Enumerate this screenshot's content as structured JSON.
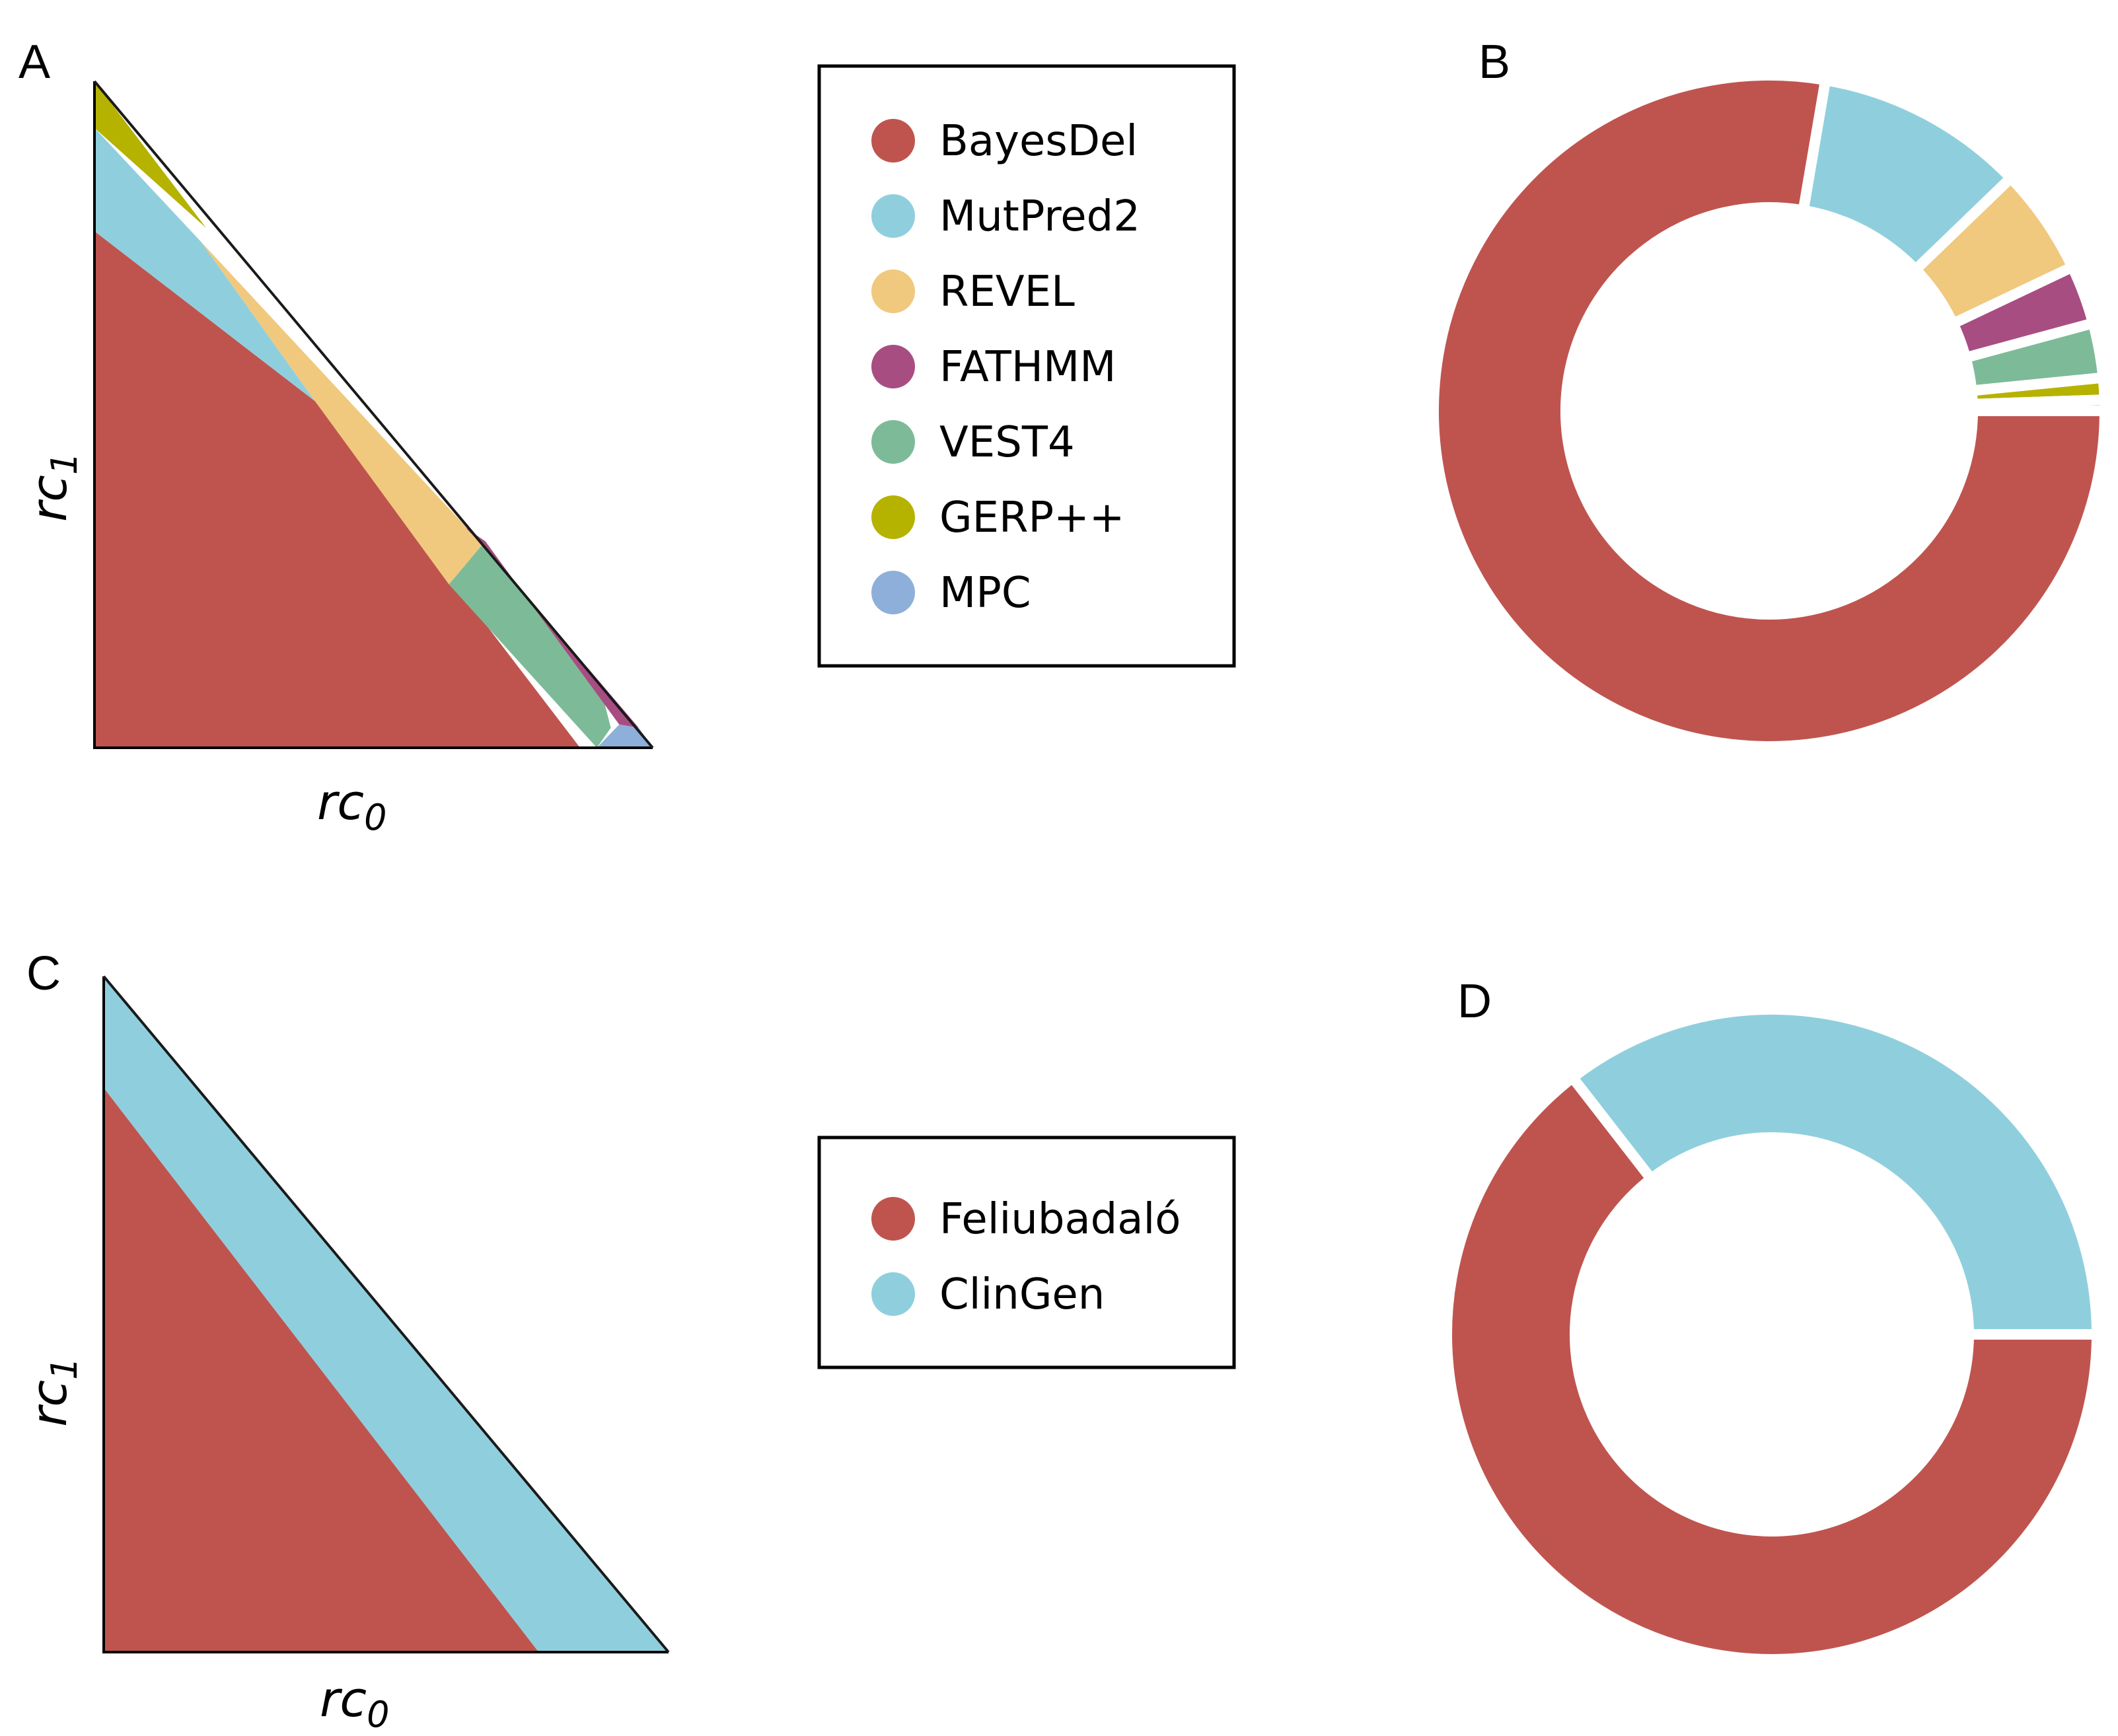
{
  "colors": {
    "BayesDel": "#bf544f",
    "MutPred2": "#8fcfdd",
    "REVEL": "#f0c97e",
    "FATHMM": "#a84d82",
    "VEST4": "#7dbb98",
    "GERP++": "#b5b200",
    "MPC": "#8eafd9",
    "Feliubadaló": "#bf544f",
    "ClinGen": "#8fcfdd"
  },
  "chart_data": [
    {
      "panel": "A",
      "type": "area",
      "xlabel": "rc",
      "xlabel_sub": "0",
      "ylabel": "rc",
      "ylabel_sub": "1",
      "xlim": [
        0,
        1
      ],
      "ylim": [
        0,
        1
      ],
      "grid": false,
      "regions": [
        {
          "name": "BayesDel",
          "polygon": [
            [
              0,
              0
            ],
            [
              0,
              0.775
            ],
            [
              0.395,
              0.52
            ],
            [
              0.87,
              0
            ],
            [
              0,
              0
            ]
          ]
        },
        {
          "name": "MutPred2",
          "polygon": [
            [
              0,
              0.775
            ],
            [
              0,
              0.93
            ],
            [
              0.19,
              0.76
            ],
            [
              0.395,
              0.52
            ]
          ]
        },
        {
          "name": "REVEL",
          "polygon": [
            [
              0.395,
              0.52
            ],
            [
              0.19,
              0.76
            ],
            [
              0.695,
              0.305
            ],
            [
              0.635,
              0.245
            ]
          ]
        },
        {
          "name": "VEST4",
          "polygon": [
            [
              0.635,
              0.245
            ],
            [
              0.695,
              0.305
            ],
            [
              0.905,
              0.095
            ],
            [
              0.925,
              0.03
            ],
            [
              0.9,
              0
            ]
          ]
        },
        {
          "name": "FATHMM",
          "polygon": [
            [
              0.665,
              0.33
            ],
            [
              0.7,
              0.31
            ],
            [
              0.94,
              0.035
            ],
            [
              0.975,
              0.03
            ],
            [
              0.7,
              0.3
            ]
          ]
        },
        {
          "name": "MPC",
          "polygon": [
            [
              0.9,
              0
            ],
            [
              0.94,
              0.035
            ],
            [
              0.975,
              0.03
            ],
            [
              1,
              0
            ]
          ]
        },
        {
          "name": "GERP++",
          "polygon": [
            [
              0,
              0.93
            ],
            [
              0,
              1
            ],
            [
              0.2,
              0.78
            ]
          ]
        }
      ]
    },
    {
      "panel": "B",
      "type": "pie",
      "donut": true,
      "labels": [
        "BayesDel",
        "MutPred2",
        "REVEL",
        "FATHMM",
        "VEST4",
        "GERP++",
        "MPC"
      ],
      "values": [
        73.8,
        9.6,
        4.9,
        2.7,
        2.5,
        1.0,
        0.5
      ]
    },
    {
      "panel": "C",
      "type": "area",
      "xlabel": "rc",
      "xlabel_sub": "0",
      "ylabel": "rc",
      "ylabel_sub": "1",
      "xlim": [
        0,
        1
      ],
      "ylim": [
        0,
        1
      ],
      "grid": false,
      "regions": [
        {
          "name": "Feliubadaló",
          "polygon": [
            [
              0,
              0
            ],
            [
              0,
              0.835
            ],
            [
              0.77,
              0
            ]
          ]
        },
        {
          "name": "ClinGen",
          "polygon": [
            [
              0,
              0.835
            ],
            [
              0,
              1
            ],
            [
              1,
              0
            ],
            [
              0.77,
              0
            ]
          ]
        }
      ]
    },
    {
      "panel": "D",
      "type": "pie",
      "donut": true,
      "labels": [
        "Feliubadaló",
        "ClinGen"
      ],
      "values": [
        64.5,
        35.5
      ]
    }
  ],
  "legends": [
    {
      "entries": [
        "BayesDel",
        "MutPred2",
        "REVEL",
        "FATHMM",
        "VEST4",
        "GERP++",
        "MPC"
      ]
    },
    {
      "entries": [
        "Feliubadaló",
        "ClinGen"
      ]
    }
  ]
}
